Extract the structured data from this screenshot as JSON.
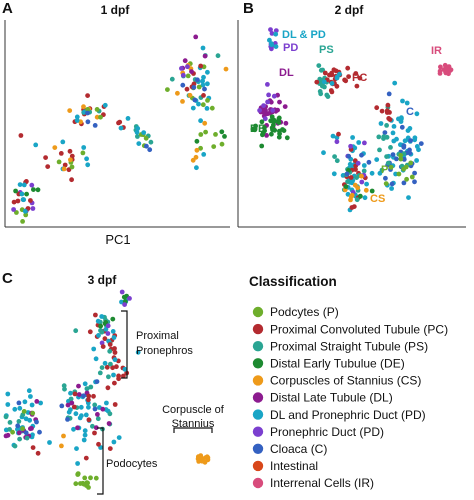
{
  "chart_data": [
    {
      "type": "scatter",
      "panel": "A",
      "title": "1 dpf",
      "xlabel": "PC1",
      "ylabel": "",
      "clusters": [
        {
          "class": "P",
          "cx": 0.05,
          "cy": 0.1,
          "sx": 0.025,
          "sy": 0.05,
          "n": 5
        },
        {
          "class": "PD",
          "cx": 0.07,
          "cy": 0.1,
          "sx": 0.03,
          "sy": 0.06,
          "n": 6
        },
        {
          "class": "PC",
          "cx": 0.06,
          "cy": 0.14,
          "sx": 0.04,
          "sy": 0.06,
          "n": 8
        },
        {
          "class": "DLPD",
          "cx": 0.06,
          "cy": 0.1,
          "sx": 0.03,
          "sy": 0.06,
          "n": 6
        },
        {
          "class": "DE",
          "cx": 0.09,
          "cy": 0.17,
          "sx": 0.03,
          "sy": 0.04,
          "n": 4
        },
        {
          "class": "PC",
          "cx": 0.22,
          "cy": 0.32,
          "sx": 0.07,
          "sy": 0.06,
          "n": 10
        },
        {
          "class": "DLPD",
          "cx": 0.25,
          "cy": 0.35,
          "sx": 0.06,
          "sy": 0.06,
          "n": 6
        },
        {
          "class": "P",
          "cx": 0.24,
          "cy": 0.33,
          "sx": 0.05,
          "sy": 0.05,
          "n": 4
        },
        {
          "class": "CS",
          "cx": 0.23,
          "cy": 0.34,
          "sx": 0.05,
          "sy": 0.05,
          "n": 3
        },
        {
          "class": "PC",
          "cx": 0.36,
          "cy": 0.55,
          "sx": 0.04,
          "sy": 0.035,
          "n": 8
        },
        {
          "class": "CS",
          "cx": 0.37,
          "cy": 0.55,
          "sx": 0.04,
          "sy": 0.035,
          "n": 5
        },
        {
          "class": "PS",
          "cx": 0.37,
          "cy": 0.54,
          "sx": 0.04,
          "sy": 0.035,
          "n": 4
        },
        {
          "class": "DLPD",
          "cx": 0.36,
          "cy": 0.53,
          "sx": 0.04,
          "sy": 0.035,
          "n": 4
        },
        {
          "class": "P",
          "cx": 0.38,
          "cy": 0.56,
          "sx": 0.03,
          "sy": 0.03,
          "n": 3
        },
        {
          "class": "C",
          "cx": 0.36,
          "cy": 0.53,
          "sx": 0.03,
          "sy": 0.03,
          "n": 3
        },
        {
          "class": "PC",
          "cx": 0.52,
          "cy": 0.5,
          "sx": 0.02,
          "sy": 0.03,
          "n": 3
        },
        {
          "class": "DLPD",
          "cx": 0.52,
          "cy": 0.49,
          "sx": 0.02,
          "sy": 0.03,
          "n": 2
        },
        {
          "class": "PS",
          "cx": 0.62,
          "cy": 0.43,
          "sx": 0.03,
          "sy": 0.04,
          "n": 5
        },
        {
          "class": "P",
          "cx": 0.62,
          "cy": 0.43,
          "sx": 0.03,
          "sy": 0.04,
          "n": 4
        },
        {
          "class": "DLPD",
          "cx": 0.62,
          "cy": 0.45,
          "sx": 0.03,
          "sy": 0.04,
          "n": 4
        },
        {
          "class": "C",
          "cx": 0.61,
          "cy": 0.42,
          "sx": 0.02,
          "sy": 0.03,
          "n": 2
        },
        {
          "class": "DLPD",
          "cx": 0.87,
          "cy": 0.7,
          "sx": 0.05,
          "sy": 0.09,
          "n": 14
        },
        {
          "class": "PS",
          "cx": 0.86,
          "cy": 0.7,
          "sx": 0.05,
          "sy": 0.09,
          "n": 8
        },
        {
          "class": "P",
          "cx": 0.85,
          "cy": 0.68,
          "sx": 0.05,
          "sy": 0.09,
          "n": 10
        },
        {
          "class": "PC",
          "cx": 0.86,
          "cy": 0.74,
          "sx": 0.05,
          "sy": 0.07,
          "n": 6
        },
        {
          "class": "CS",
          "cx": 0.86,
          "cy": 0.71,
          "sx": 0.05,
          "sy": 0.08,
          "n": 8
        },
        {
          "class": "DL",
          "cx": 0.86,
          "cy": 0.78,
          "sx": 0.04,
          "sy": 0.06,
          "n": 5
        },
        {
          "class": "PD",
          "cx": 0.82,
          "cy": 0.76,
          "sx": 0.04,
          "sy": 0.04,
          "n": 3
        },
        {
          "class": "C",
          "cx": 0.86,
          "cy": 0.66,
          "sx": 0.04,
          "sy": 0.06,
          "n": 5
        },
        {
          "class": "P",
          "cx": 0.9,
          "cy": 0.45,
          "sx": 0.015,
          "sy": 0.03,
          "n": 3
        },
        {
          "class": "CS",
          "cx": 0.86,
          "cy": 0.34,
          "sx": 0.02,
          "sy": 0.03,
          "n": 3
        },
        {
          "class": "DLPD",
          "cx": 0.87,
          "cy": 0.33,
          "sx": 0.02,
          "sy": 0.03,
          "n": 2
        },
        {
          "class": "DE",
          "cx": 0.95,
          "cy": 0.42,
          "sx": 0.03,
          "sy": 0.03,
          "n": 3
        },
        {
          "class": "P",
          "cx": 0.96,
          "cy": 0.42,
          "sx": 0.02,
          "sy": 0.03,
          "n": 3
        }
      ]
    },
    {
      "type": "scatter",
      "panel": "B",
      "title": "2 dpf",
      "xlabel": "",
      "ylabel": "",
      "cluster_labels": [
        {
          "text": "DL & PD",
          "class": "DLPD"
        },
        {
          "text": "PD",
          "class": "PD"
        },
        {
          "text": "PS",
          "class": "PS"
        },
        {
          "text": "DL",
          "class": "DL"
        },
        {
          "text": "PC",
          "class": "PC"
        },
        {
          "text": "IR",
          "class": "IR"
        },
        {
          "text": "DE",
          "class": "DE"
        },
        {
          "text": "C",
          "class": "C"
        },
        {
          "text": "P",
          "class": "P"
        },
        {
          "text": "CS",
          "class": "CS"
        }
      ],
      "clusters": [
        {
          "class": "PD",
          "cx": 0.13,
          "cy": 0.92,
          "sx": 0.012,
          "sy": 0.035,
          "n": 8
        },
        {
          "class": "DLPD",
          "cx": 0.13,
          "cy": 0.9,
          "sx": 0.012,
          "sy": 0.03,
          "n": 5
        },
        {
          "class": "DL",
          "cx": 0.13,
          "cy": 0.55,
          "sx": 0.035,
          "sy": 0.055,
          "n": 30
        },
        {
          "class": "PD",
          "cx": 0.11,
          "cy": 0.58,
          "sx": 0.02,
          "sy": 0.04,
          "n": 8
        },
        {
          "class": "DE",
          "cx": 0.14,
          "cy": 0.46,
          "sx": 0.04,
          "sy": 0.035,
          "n": 28
        },
        {
          "class": "PS",
          "cx": 0.36,
          "cy": 0.73,
          "sx": 0.012,
          "sy": 0.06,
          "n": 18
        },
        {
          "class": "PC",
          "cx": 0.43,
          "cy": 0.71,
          "sx": 0.04,
          "sy": 0.03,
          "n": 25
        },
        {
          "class": "DLPD",
          "cx": 0.42,
          "cy": 0.72,
          "sx": 0.03,
          "sy": 0.02,
          "n": 5
        },
        {
          "class": "IR",
          "cx": 0.93,
          "cy": 0.76,
          "sx": 0.012,
          "sy": 0.02,
          "n": 22
        },
        {
          "class": "DLPD",
          "cx": 0.72,
          "cy": 0.38,
          "sx": 0.06,
          "sy": 0.12,
          "n": 45
        },
        {
          "class": "C",
          "cx": 0.72,
          "cy": 0.36,
          "sx": 0.05,
          "sy": 0.1,
          "n": 25
        },
        {
          "class": "PS",
          "cx": 0.7,
          "cy": 0.38,
          "sx": 0.05,
          "sy": 0.1,
          "n": 15
        },
        {
          "class": "P",
          "cx": 0.73,
          "cy": 0.28,
          "sx": 0.05,
          "sy": 0.05,
          "n": 10
        },
        {
          "class": "PC",
          "cx": 0.66,
          "cy": 0.54,
          "sx": 0.02,
          "sy": 0.02,
          "n": 8
        },
        {
          "class": "DLPD",
          "cx": 0.5,
          "cy": 0.24,
          "sx": 0.05,
          "sy": 0.1,
          "n": 35
        },
        {
          "class": "PC",
          "cx": 0.49,
          "cy": 0.24,
          "sx": 0.04,
          "sy": 0.09,
          "n": 15
        },
        {
          "class": "PS",
          "cx": 0.51,
          "cy": 0.26,
          "sx": 0.04,
          "sy": 0.09,
          "n": 12
        },
        {
          "class": "PD",
          "cx": 0.5,
          "cy": 0.24,
          "sx": 0.04,
          "sy": 0.09,
          "n": 8
        },
        {
          "class": "CS",
          "cx": 0.52,
          "cy": 0.18,
          "sx": 0.04,
          "sy": 0.05,
          "n": 8
        },
        {
          "class": "DE",
          "cx": 0.5,
          "cy": 0.2,
          "sx": 0.03,
          "sy": 0.05,
          "n": 4
        },
        {
          "class": "C",
          "cx": 0.52,
          "cy": 0.3,
          "sx": 0.03,
          "sy": 0.05,
          "n": 4
        }
      ]
    },
    {
      "type": "scatter",
      "panel": "C",
      "title": "3 dpf",
      "xlabel": "",
      "ylabel": "",
      "clusters": [
        {
          "class": "DLPD",
          "cx": 0.53,
          "cy": 0.96,
          "sx": 0.01,
          "sy": 0.015,
          "n": 3
        },
        {
          "class": "DE",
          "cx": 0.54,
          "cy": 0.96,
          "sx": 0.01,
          "sy": 0.015,
          "n": 3
        },
        {
          "class": "PD",
          "cx": 0.53,
          "cy": 0.97,
          "sx": 0.01,
          "sy": 0.015,
          "n": 3
        },
        {
          "class": "PC",
          "cx": 0.44,
          "cy": 0.8,
          "sx": 0.04,
          "sy": 0.05,
          "n": 10
        },
        {
          "class": "PS",
          "cx": 0.43,
          "cy": 0.81,
          "sx": 0.04,
          "sy": 0.05,
          "n": 10
        },
        {
          "class": "DLPD",
          "cx": 0.44,
          "cy": 0.8,
          "sx": 0.04,
          "sy": 0.05,
          "n": 8
        },
        {
          "class": "DE",
          "cx": 0.45,
          "cy": 0.82,
          "sx": 0.03,
          "sy": 0.04,
          "n": 4
        },
        {
          "class": "PD",
          "cx": 0.44,
          "cy": 0.83,
          "sx": 0.03,
          "sy": 0.04,
          "n": 3
        },
        {
          "class": "PC",
          "cx": 0.5,
          "cy": 0.64,
          "sx": 0.04,
          "sy": 0.06,
          "n": 18
        },
        {
          "class": "DLPD",
          "cx": 0.48,
          "cy": 0.65,
          "sx": 0.04,
          "sy": 0.05,
          "n": 6
        },
        {
          "class": "PS",
          "cx": 0.46,
          "cy": 0.66,
          "sx": 0.03,
          "sy": 0.05,
          "n": 5
        },
        {
          "class": "DLPD",
          "cx": 0.35,
          "cy": 0.44,
          "sx": 0.06,
          "sy": 0.06,
          "n": 25
        },
        {
          "class": "PS",
          "cx": 0.34,
          "cy": 0.44,
          "sx": 0.06,
          "sy": 0.06,
          "n": 15
        },
        {
          "class": "DL",
          "cx": 0.36,
          "cy": 0.44,
          "sx": 0.06,
          "sy": 0.06,
          "n": 10
        },
        {
          "class": "PC",
          "cx": 0.35,
          "cy": 0.46,
          "sx": 0.05,
          "sy": 0.05,
          "n": 6
        },
        {
          "class": "C",
          "cx": 0.34,
          "cy": 0.43,
          "sx": 0.05,
          "sy": 0.05,
          "n": 5
        },
        {
          "class": "DLPD",
          "cx": 0.08,
          "cy": 0.35,
          "sx": 0.05,
          "sy": 0.08,
          "n": 25
        },
        {
          "class": "DL",
          "cx": 0.08,
          "cy": 0.35,
          "sx": 0.05,
          "sy": 0.07,
          "n": 12
        },
        {
          "class": "PS",
          "cx": 0.08,
          "cy": 0.35,
          "sx": 0.05,
          "sy": 0.07,
          "n": 8
        },
        {
          "class": "C",
          "cx": 0.08,
          "cy": 0.34,
          "sx": 0.05,
          "sy": 0.07,
          "n": 5
        },
        {
          "class": "P",
          "cx": 0.08,
          "cy": 0.33,
          "sx": 0.04,
          "sy": 0.06,
          "n": 4
        },
        {
          "class": "PC",
          "cx": 0.14,
          "cy": 0.22,
          "sx": 0.01,
          "sy": 0.015,
          "n": 2
        },
        {
          "class": "CS",
          "cx": 0.26,
          "cy": 0.26,
          "sx": 0.008,
          "sy": 0.012,
          "n": 2
        },
        {
          "class": "DLPD",
          "cx": 0.4,
          "cy": 0.25,
          "sx": 0.05,
          "sy": 0.04,
          "n": 8
        },
        {
          "class": "PC",
          "cx": 0.4,
          "cy": 0.25,
          "sx": 0.04,
          "sy": 0.04,
          "n": 4
        },
        {
          "class": "P",
          "cx": 0.35,
          "cy": 0.07,
          "sx": 0.02,
          "sy": 0.03,
          "n": 14
        },
        {
          "class": "CS",
          "cx": 0.89,
          "cy": 0.18,
          "sx": 0.012,
          "sy": 0.018,
          "n": 14
        }
      ],
      "annotations": [
        {
          "text_lines": [
            "Proximal",
            "Pronephros"
          ]
        },
        {
          "text_lines": [
            "Corpuscle of",
            "Stannius"
          ]
        },
        {
          "text_lines": [
            "Podocytes"
          ]
        }
      ]
    }
  ],
  "figure": {
    "panel_letters": [
      "A",
      "B",
      "C"
    ]
  },
  "legend": {
    "title": "Classification",
    "items": [
      {
        "key": "P",
        "label": "Podcytes (P)",
        "color": "#6eae2c"
      },
      {
        "key": "PC",
        "label": "Proximal Convoluted Tubule (PC)",
        "color": "#b32b30"
      },
      {
        "key": "PS",
        "label": "Proximal Straight Tubule (PS)",
        "color": "#2aa593"
      },
      {
        "key": "DE",
        "label": "Distal Early Tubulue (DE)",
        "color": "#1d8a31"
      },
      {
        "key": "CS",
        "label": "Corpuscles of Stannius (CS)",
        "color": "#ee9a1a"
      },
      {
        "key": "DL",
        "label": "Distal Late Tubule (DL)",
        "color": "#8c1b8f"
      },
      {
        "key": "DLPD",
        "label": "DL and Pronephric Duct (PD)",
        "color": "#19a5c6"
      },
      {
        "key": "PD",
        "label": "Pronephric Duct (PD)",
        "color": "#7b3fcf"
      },
      {
        "key": "C",
        "label": "Cloaca (C)",
        "color": "#3461c1"
      },
      {
        "key": "INT",
        "label": "Intestinal",
        "color": "#d8471a"
      },
      {
        "key": "IR",
        "label": "Interrenal Cells (IR)",
        "color": "#d84c7c"
      }
    ]
  }
}
